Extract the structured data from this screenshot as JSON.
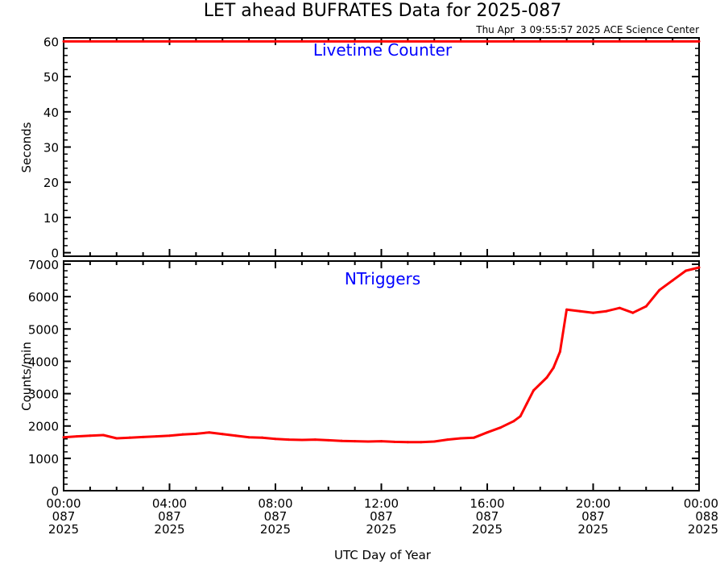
{
  "title": "LET ahead BUFRATES Data for 2025-087",
  "timestamp": "Thu Apr  3 09:55:57 2025 ACE Science Center",
  "xlabel": "UTC Day of Year",
  "x_ticks": [
    {
      "time": "00:00",
      "doy": "087",
      "year": "2025"
    },
    {
      "time": "04:00",
      "doy": "087",
      "year": "2025"
    },
    {
      "time": "08:00",
      "doy": "087",
      "year": "2025"
    },
    {
      "time": "12:00",
      "doy": "087",
      "year": "2025"
    },
    {
      "time": "16:00",
      "doy": "087",
      "year": "2025"
    },
    {
      "time": "20:00",
      "doy": "087",
      "year": "2025"
    },
    {
      "time": "00:00",
      "doy": "088",
      "year": "2025"
    }
  ],
  "colors": {
    "series": "#ff0000",
    "label": "#0000ff",
    "axes": "#000000"
  },
  "chart_data": [
    {
      "type": "line",
      "label": "Livetime Counter",
      "ylabel": "Seconds",
      "xlim_hours": [
        0,
        24
      ],
      "ylim": [
        -1,
        61
      ],
      "yticks": [
        0,
        10,
        20,
        30,
        40,
        50,
        60
      ],
      "x_hours": [
        0,
        24
      ],
      "values": [
        60,
        60
      ]
    },
    {
      "type": "line",
      "label": "NTriggers",
      "ylabel": "Counts/min",
      "xlim_hours": [
        0,
        24
      ],
      "ylim": [
        0,
        7100
      ],
      "yticks": [
        0,
        1000,
        2000,
        3000,
        4000,
        5000,
        6000,
        7000
      ],
      "x_hours": [
        0,
        0.5,
        1,
        1.5,
        2,
        2.5,
        3,
        3.5,
        4,
        4.5,
        5,
        5.5,
        6,
        6.5,
        7,
        7.5,
        8,
        8.5,
        9,
        9.5,
        10,
        10.5,
        11,
        11.5,
        12,
        12.5,
        13,
        13.5,
        14,
        14.5,
        15,
        15.5,
        16,
        16.5,
        17,
        17.25,
        17.5,
        17.75,
        18,
        18.25,
        18.5,
        18.75,
        19,
        19.5,
        20,
        20.5,
        21,
        21.5,
        22,
        22.5,
        23,
        23.5,
        24
      ],
      "values": [
        1650,
        1680,
        1700,
        1720,
        1620,
        1640,
        1660,
        1680,
        1700,
        1740,
        1760,
        1800,
        1750,
        1700,
        1650,
        1640,
        1600,
        1580,
        1570,
        1580,
        1560,
        1540,
        1530,
        1520,
        1530,
        1510,
        1500,
        1500,
        1520,
        1580,
        1620,
        1640,
        1800,
        1950,
        2150,
        2300,
        2700,
        3100,
        3300,
        3500,
        3800,
        4300,
        5600,
        5550,
        5500,
        5550,
        5650,
        5500,
        5700,
        6200,
        6500,
        6800,
        6900
      ]
    }
  ]
}
